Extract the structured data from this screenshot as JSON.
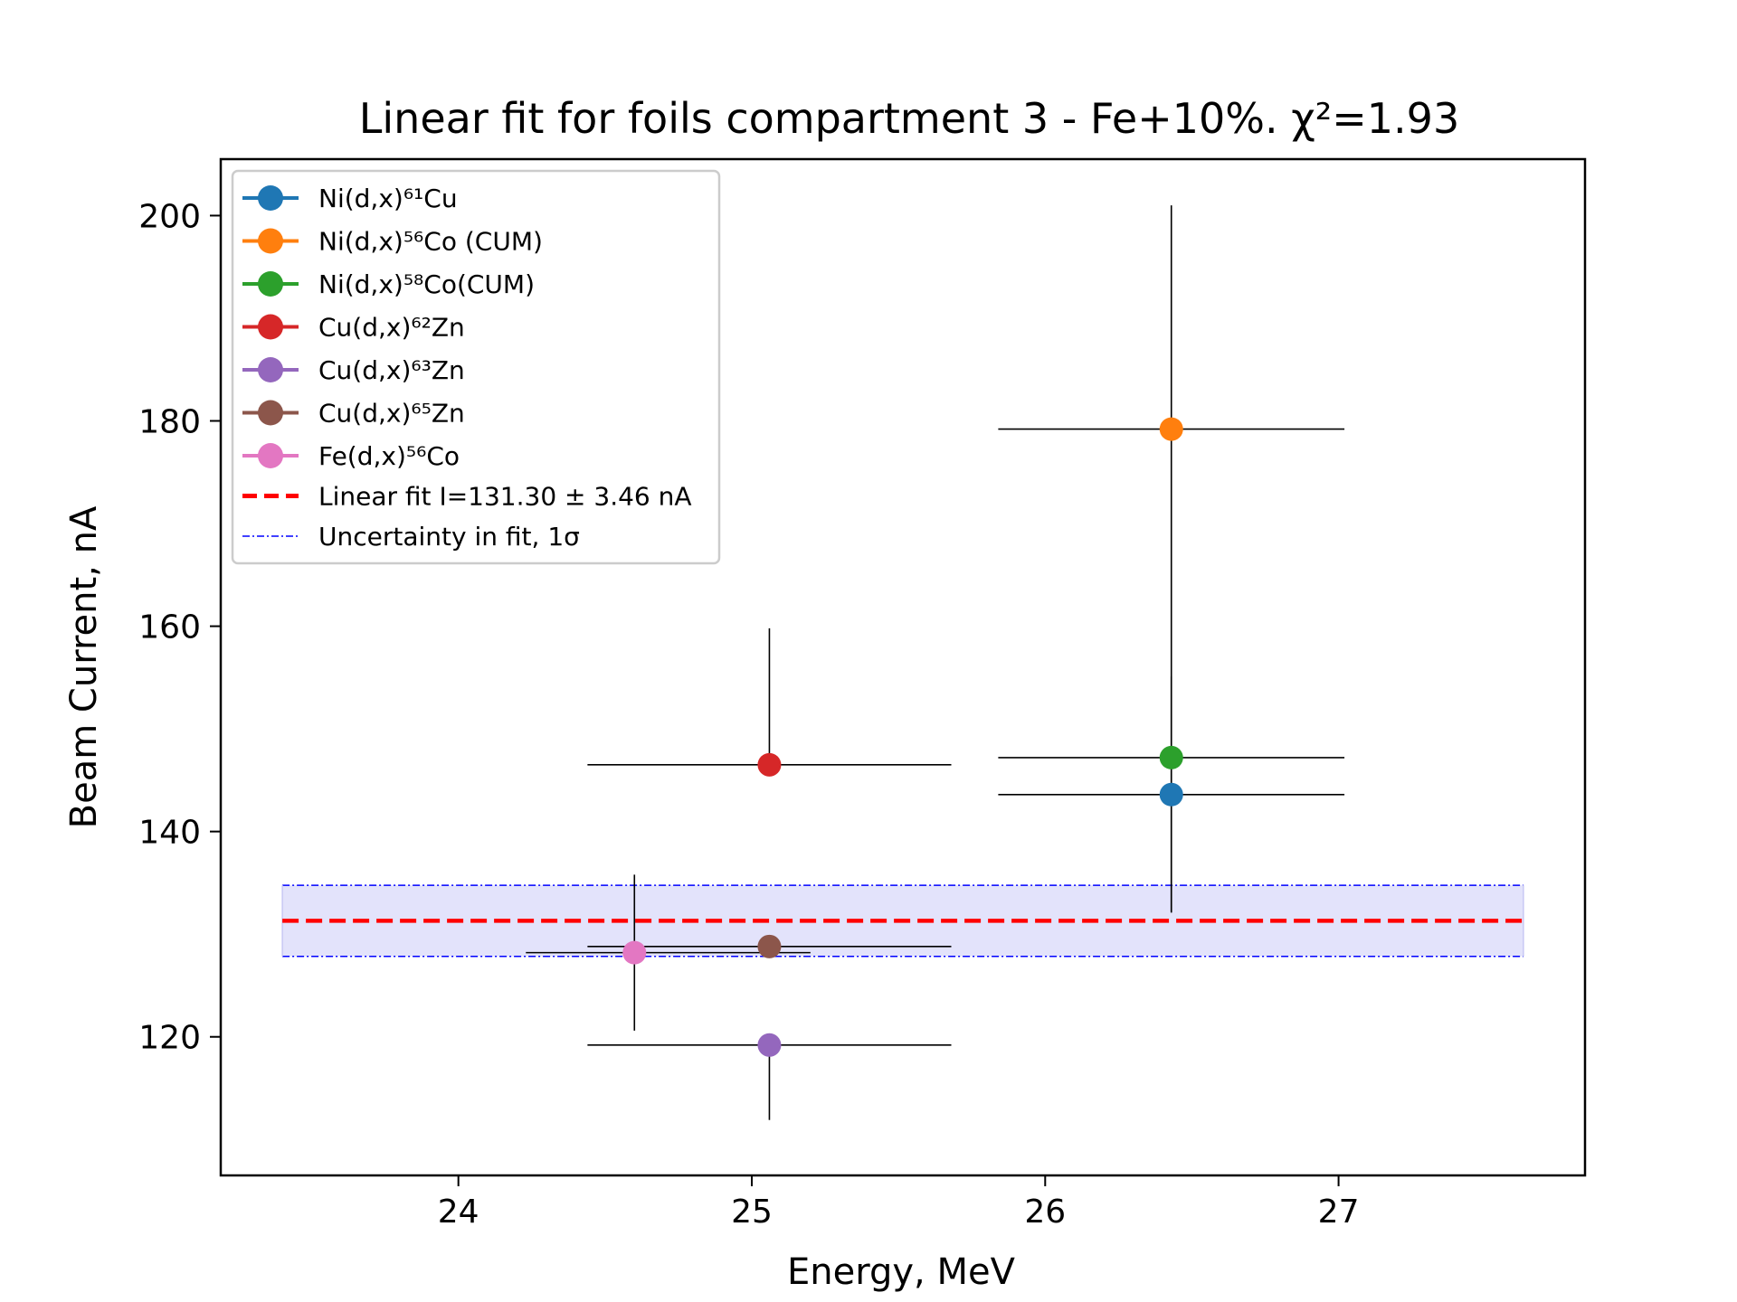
{
  "chart_data": {
    "type": "scatter",
    "title": "Linear fit for foils compartment 3 - Fe+10%. χ²=1.93",
    "xlabel": "Energy, MeV",
    "ylabel": "Beam Current, nA",
    "xlim": [
      23.19,
      27.84
    ],
    "ylim": [
      106.5,
      205.5
    ],
    "xticks": [
      24,
      25,
      26,
      27
    ],
    "yticks": [
      120,
      140,
      160,
      180,
      200
    ],
    "grid": false,
    "legend_position": "top-left",
    "series": [
      {
        "label": "Ni(d,x)⁶¹Cu",
        "color": "#1f77b4",
        "x": 26.43,
        "y": 143.6,
        "xerr": 0.59,
        "yerr_low": 11.5,
        "yerr_high": 11.5
      },
      {
        "label": "Ni(d,x)⁵⁶Co (CUM)",
        "color": "#ff7f0e",
        "x": 26.43,
        "y": 179.2,
        "xerr": 0.59,
        "yerr_low": 47.0,
        "yerr_high": 21.8
      },
      {
        "label": "Ni(d,x)⁵⁸Co(CUM)",
        "color": "#2ca02c",
        "x": 26.43,
        "y": 147.2,
        "xerr": 0.59,
        "yerr_low": 0,
        "yerr_high": 0
      },
      {
        "label": "Cu(d,x)⁶²Zn",
        "color": "#d62728",
        "x": 25.06,
        "y": 146.5,
        "xerr": 0.62,
        "yerr_low": 0,
        "yerr_high": 13.3
      },
      {
        "label": "Cu(d,x)⁶³Zn",
        "color": "#9467bd",
        "x": 25.06,
        "y": 119.2,
        "xerr": 0.62,
        "yerr_low": 7.3,
        "yerr_high": 0
      },
      {
        "label": "Cu(d,x)⁶⁵Zn",
        "color": "#8c564b",
        "x": 25.06,
        "y": 128.8,
        "xerr": 0.62,
        "yerr_low": 0,
        "yerr_high": 0
      },
      {
        "label": "Fe(d,x)⁵⁶Co",
        "color": "#e377c2",
        "x": 24.6,
        "y": 128.2,
        "xerr": 0.37,
        "xerr_right_to": 25.2,
        "yerr_low": 7.6,
        "yerr_high": 7.6
      }
    ],
    "fit": {
      "label": "Linear fit I=131.30 ± 3.46 nA",
      "value": 131.3,
      "uncertainty": 3.46,
      "x_range": [
        23.4,
        27.63
      ],
      "color": "#ff0000"
    },
    "band": {
      "label": "Uncertainty in fit, 1σ",
      "low": 127.84,
      "high": 134.76,
      "line_color": "#0000ff",
      "fill_color": "#e3e3fb"
    }
  }
}
